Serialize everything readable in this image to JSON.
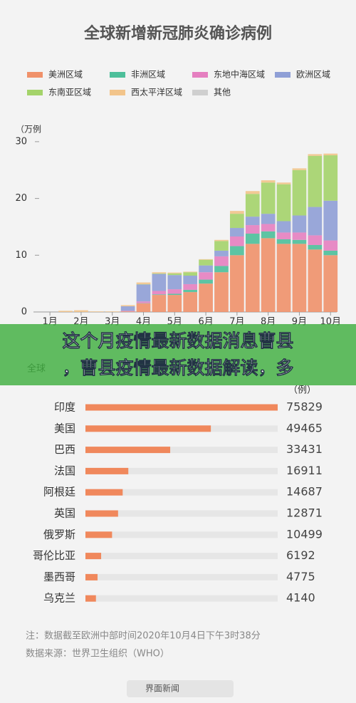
{
  "chart_data": [
    {
      "type": "bar",
      "stacked": true,
      "title": "全球新增新冠肺炎确诊病例",
      "ylabel": "（万例",
      "x": [
        1,
        1.5,
        2,
        2.5,
        3,
        3.5,
        4,
        4.5,
        5,
        5.5,
        6,
        6.5,
        7,
        7.5,
        8,
        8.5,
        9,
        9.5,
        10
      ],
      "xlim": [
        0.7,
        10.2
      ],
      "xticks": [
        {
          "value": 1,
          "label": "1月"
        },
        {
          "value": 2,
          "label": "2月"
        },
        {
          "value": 3,
          "label": "3月"
        },
        {
          "value": 4,
          "label": "4月"
        },
        {
          "value": 5,
          "label": "5月"
        },
        {
          "value": 6,
          "label": "6月"
        },
        {
          "value": 7,
          "label": "7月"
        },
        {
          "value": 8,
          "label": "8月"
        },
        {
          "value": 9,
          "label": "9月"
        },
        {
          "value": 10,
          "label": "10月"
        }
      ],
      "ylim": [
        0,
        33
      ],
      "yticks": [
        0,
        10,
        20,
        30
      ],
      "series": [
        {
          "name": "美洲区域",
          "color": "#f0916a",
          "values": [
            0,
            0,
            0,
            0,
            0,
            0.1,
            1.5,
            3,
            3,
            3.5,
            5,
            7,
            10,
            12,
            13,
            12,
            12,
            11,
            10
          ]
        },
        {
          "name": "非洲区域",
          "color": "#4dbf9a",
          "values": [
            0,
            0,
            0,
            0,
            0,
            0,
            0.05,
            0.1,
            0.2,
            0.4,
            0.7,
            1.1,
            1.6,
            1.8,
            1.2,
            0.8,
            0.7,
            0.8,
            0.8
          ]
        },
        {
          "name": "东地中海区域",
          "color": "#e57fc0",
          "values": [
            0,
            0,
            0,
            0,
            0,
            0.1,
            0.3,
            0.6,
            0.8,
            1,
            1.3,
            1.7,
            1.7,
            1.5,
            1.3,
            1.2,
            1.3,
            1.7,
            1.8
          ]
        },
        {
          "name": "欧洲区域",
          "color": "#8f9fd6",
          "values": [
            0,
            0,
            0,
            0,
            0,
            0.8,
            3,
            3,
            2.5,
            1.5,
            1.2,
            1,
            1.5,
            1.5,
            1.8,
            2,
            3,
            5,
            7
          ]
        },
        {
          "name": "东南亚区域",
          "color": "#a4d36a",
          "values": [
            0,
            0,
            0,
            0,
            0,
            0,
            0.05,
            0.1,
            0.3,
            0.6,
            1,
            1.7,
            2.5,
            4,
            5.5,
            6.5,
            8,
            9,
            8
          ]
        },
        {
          "name": "西太平洋区域",
          "color": "#f2c48a",
          "values": [
            0,
            0.2,
            0.3,
            0.1,
            0.1,
            0.2,
            0.3,
            0.2,
            0.15,
            0.1,
            0.1,
            0.2,
            0.5,
            0.5,
            0.4,
            0.3,
            0.3,
            0.3,
            0.3
          ]
        },
        {
          "name": "其他",
          "color": "#cfcfcf",
          "values": [
            0,
            0,
            0,
            0,
            0,
            0,
            0,
            0,
            0,
            0,
            0,
            0,
            0,
            0,
            0,
            0,
            0,
            0,
            0
          ]
        }
      ]
    },
    {
      "type": "hbar",
      "title": "全球",
      "unit": "（例）",
      "color": "#f0885c",
      "track_color": "#e6e6e6",
      "categories": [
        "印度",
        "美国",
        "巴西",
        "法国",
        "阿根廷",
        "英国",
        "俄罗斯",
        "哥伦比亚",
        "墨西哥",
        "乌克兰"
      ],
      "values": [
        75829,
        49465,
        33431,
        16911,
        14687,
        12871,
        10499,
        6192,
        4775,
        4140
      ],
      "xlim": [
        0,
        75829
      ]
    }
  ],
  "headline": [
    "这个月疫情最新数据消息曹县",
    "，曹县疫情最新数据解读，多"
  ],
  "notes": [
    "注：数据截至欧洲中部时间2020年10月4日下午3时38分",
    "数据来源：世界卫生组织（WHO）"
  ],
  "footer": "界面新闻"
}
